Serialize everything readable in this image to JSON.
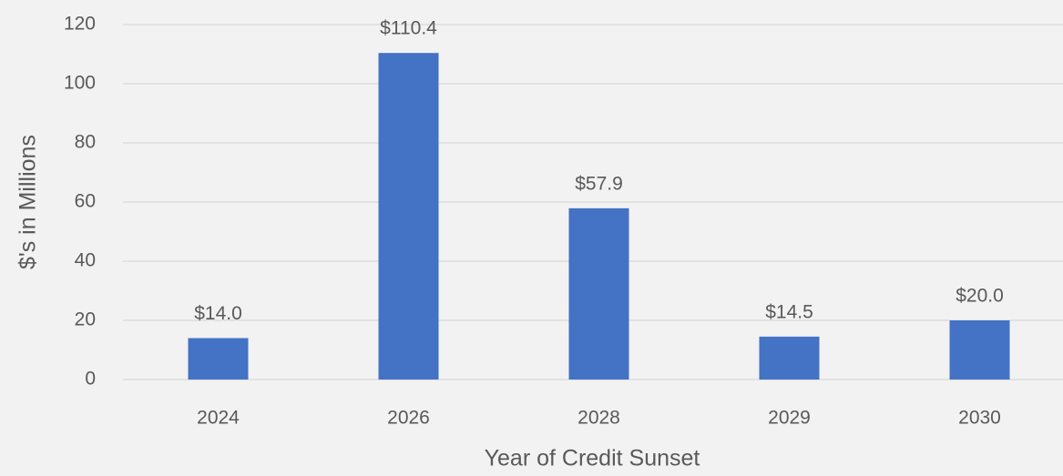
{
  "chart_data": {
    "type": "bar",
    "categories": [
      "2024",
      "2026",
      "2028",
      "2029",
      "2030"
    ],
    "values": [
      14.0,
      110.4,
      57.9,
      14.5,
      20.0
    ],
    "value_labels": [
      "$14.0",
      "$110.4",
      "$57.9",
      "$14.5",
      "$20.0"
    ],
    "color": "#4472c4",
    "xlabel": "Year of Credit Sunset",
    "ylabel": "$'s in Millions",
    "ylim": [
      0,
      120
    ],
    "yticks": [
      0,
      20,
      40,
      60,
      80,
      100,
      120
    ],
    "grid": true
  }
}
